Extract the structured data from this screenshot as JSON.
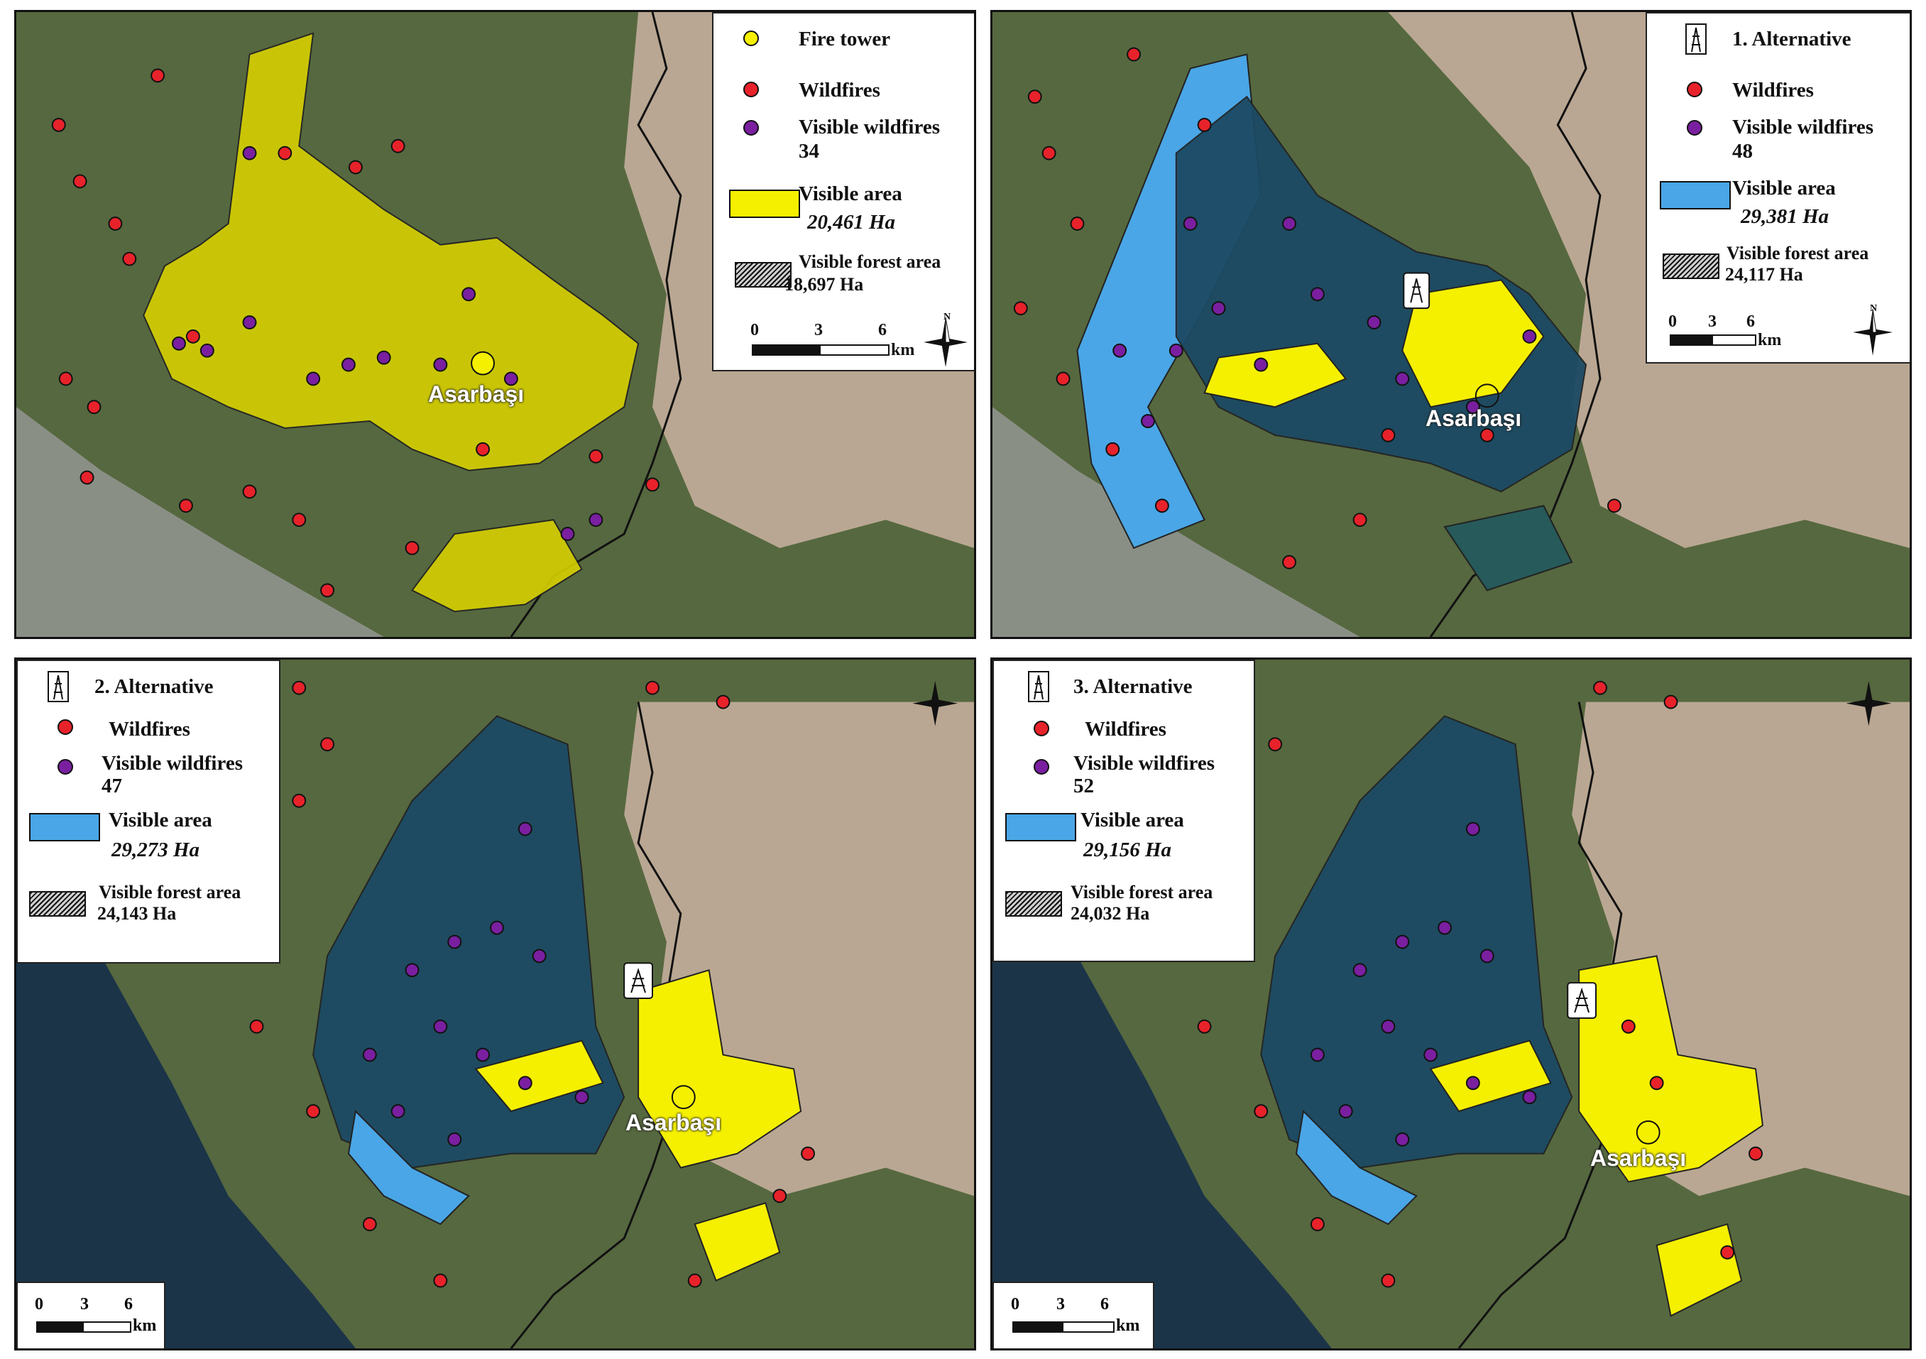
{
  "colors": {
    "wildfire": "#e8222a",
    "visible_wildfire": "#7a1fa0",
    "yellow_area": "#f5f000",
    "blue_area": "#4aa6e6",
    "fire_tower": "#f5f000"
  },
  "town_name": "Asarbaşı",
  "panels": [
    {
      "id": "current",
      "legend": {
        "tower_label": "Fire tower",
        "wildfires_label": "Wildfires",
        "visible_wildfires_label": "Visible wildfires",
        "visible_wildfires_count": "34",
        "visible_area_label": "Visible area",
        "visible_area_value": "20,461 Ha",
        "visible_forest_label": "Visible forest area",
        "visible_forest_value": "18,697 Ha"
      },
      "scale": {
        "ticks": [
          "0",
          "3",
          "6"
        ],
        "unit": "km"
      },
      "north": "N",
      "tower_icon": "yellow-circle-icon"
    },
    {
      "id": "alt1",
      "legend": {
        "tower_label": "1. Alternative",
        "wildfires_label": "Wildfires",
        "visible_wildfires_label": "Visible wildfires",
        "visible_wildfires_count": "48",
        "visible_area_label": "Visible area",
        "visible_area_value": "29,381 Ha",
        "visible_forest_label": "Visible forest area",
        "visible_forest_value": "24,117 Ha"
      },
      "scale": {
        "ticks": [
          "0",
          "3",
          "6"
        ],
        "unit": "km"
      },
      "north": "N",
      "tower_icon": "watchtower-icon"
    },
    {
      "id": "alt2",
      "legend": {
        "tower_label": "2. Alternative",
        "wildfires_label": "Wildfires",
        "visible_wildfires_label": "Visible wildfires",
        "visible_wildfires_count": "47",
        "visible_area_label": "Visible area",
        "visible_area_value": "29,273 Ha",
        "visible_forest_label": "Visible forest area",
        "visible_forest_value": "24,143 Ha"
      },
      "scale": {
        "ticks": [
          "0",
          "3",
          "6"
        ],
        "unit": "km"
      },
      "tower_icon": "watchtower-icon"
    },
    {
      "id": "alt3",
      "legend": {
        "tower_label": "3. Alternative",
        "wildfires_label": "Wildfires",
        "visible_wildfires_label": "Visible wildfires",
        "visible_wildfires_count": "52",
        "visible_area_label": "Visible area",
        "visible_area_value": "29,156 Ha",
        "visible_forest_label": "Visible forest area",
        "visible_forest_value": "24,032 Ha"
      },
      "scale": {
        "ticks": [
          "0",
          "3",
          "6"
        ],
        "unit": "km"
      },
      "tower_icon": "watchtower-icon"
    }
  ]
}
